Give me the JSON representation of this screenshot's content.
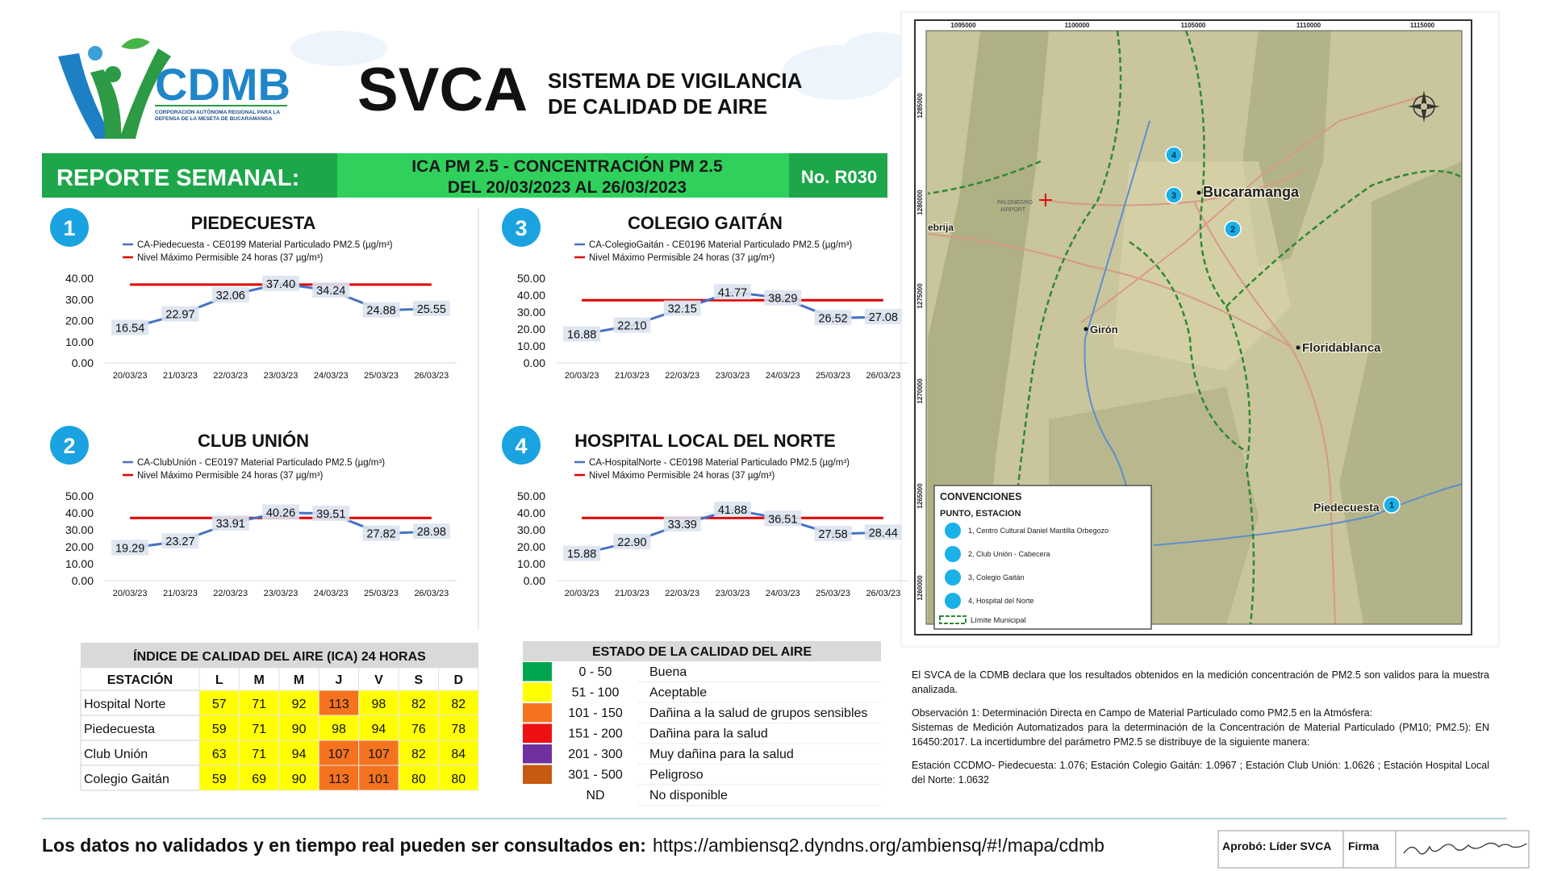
{
  "header": {
    "org": "CDMB",
    "org_subtitle_1": "CORPORACIÓN AUTÓNOMA REGIONAL PARA LA",
    "org_subtitle_2": "DEFENSA DE LA MESETA DE BUCARAMANGA",
    "brand": "SVCA",
    "title_line1": "SISTEMA DE VIGILANCIA",
    "title_line2": "DE CALIDAD DE AIRE"
  },
  "banner": {
    "label": "REPORTE SEMANAL:",
    "line1": "ICA PM 2.5 - CONCENTRACIÓN PM 2.5",
    "line2": "DEL 20/03/2023 AL 26/03/2023",
    "number": "No. R030"
  },
  "chart_data": [
    {
      "type": "line",
      "number": "1",
      "title": "PIEDECUESTA",
      "categories": [
        "20/03/23",
        "21/03/23",
        "22/03/23",
        "23/03/23",
        "24/03/23",
        "25/03/23",
        "26/03/23"
      ],
      "series": [
        {
          "name": "CA-Piedecuesta - CE0199 Material Particulado PM2.5 (µg/m³)",
          "color": "#4472c4",
          "values": [
            16.54,
            22.97,
            32.06,
            37.4,
            34.24,
            24.88,
            25.55
          ],
          "value_labels": [
            "16.54",
            "22.97",
            "32.06",
            "37.40",
            "34.24",
            "24.88",
            "25.55"
          ]
        },
        {
          "name": "Nivel Máximo Permisible 24 horas (37 µg/m³)",
          "color": "#e00000",
          "values": [
            37,
            37,
            37,
            37,
            37,
            37,
            37
          ]
        }
      ],
      "ylim": [
        0,
        40
      ],
      "yticks": [
        {
          "value": 0,
          "label": "0.00"
        },
        {
          "value": 10,
          "label": "10.00"
        },
        {
          "value": 20,
          "label": "20.00"
        },
        {
          "value": 30,
          "label": "30.00"
        },
        {
          "value": 40,
          "label": "40.00"
        }
      ]
    },
    {
      "type": "line",
      "number": "2",
      "title": "CLUB UNIÓN",
      "categories": [
        "20/03/23",
        "21/03/23",
        "22/03/23",
        "23/03/23",
        "24/03/23",
        "25/03/23",
        "26/03/23"
      ],
      "series": [
        {
          "name": "CA-ClubUnión - CE0197 Material Particulado PM2.5 (µg/m³)",
          "color": "#4472c4",
          "values": [
            19.29,
            23.27,
            33.91,
            40.26,
            39.51,
            27.82,
            28.98
          ],
          "value_labels": [
            "19.29",
            "23.27",
            "33.91",
            "40.26",
            "39.51",
            "27.82",
            "28.98"
          ]
        },
        {
          "name": "Nivel Máximo Permisible 24 horas (37 µg/m³)",
          "color": "#e00000",
          "values": [
            37,
            37,
            37,
            37,
            37,
            37,
            37
          ]
        }
      ],
      "ylim": [
        0,
        50
      ],
      "yticks": [
        {
          "value": 0,
          "label": "0.00"
        },
        {
          "value": 10,
          "label": "10.00"
        },
        {
          "value": 20,
          "label": "20.00"
        },
        {
          "value": 30,
          "label": "30.00"
        },
        {
          "value": 40,
          "label": "40.00"
        },
        {
          "value": 50,
          "label": "50.00"
        }
      ]
    },
    {
      "type": "line",
      "number": "3",
      "title": "COLEGIO GAITÁN",
      "categories": [
        "20/03/23",
        "21/03/23",
        "22/03/23",
        "23/03/23",
        "24/03/23",
        "25/03/23",
        "26/03/23"
      ],
      "series": [
        {
          "name": "CA-ColegioGaitán - CE0196 Material Particulado PM2.5 (µg/m³)",
          "color": "#4472c4",
          "values": [
            16.88,
            22.1,
            32.15,
            41.77,
            38.29,
            26.52,
            27.08
          ],
          "value_labels": [
            "16.88",
            "22.10",
            "32.15",
            "41.77",
            "38.29",
            "26.52",
            "27.08"
          ]
        },
        {
          "name": "Nivel Máximo Permisible 24 horas (37 µg/m³)",
          "color": "#e00000",
          "values": [
            37,
            37,
            37,
            37,
            37,
            37,
            37
          ]
        }
      ],
      "ylim": [
        0,
        50
      ],
      "yticks": [
        {
          "value": 0,
          "label": "0.00"
        },
        {
          "value": 10,
          "label": "10.00"
        },
        {
          "value": 20,
          "label": "20.00"
        },
        {
          "value": 30,
          "label": "30.00"
        },
        {
          "value": 40,
          "label": "40.00"
        },
        {
          "value": 50,
          "label": "50.00"
        }
      ]
    },
    {
      "type": "line",
      "number": "4",
      "title": "HOSPITAL LOCAL DEL NORTE",
      "categories": [
        "20/03/23",
        "21/03/23",
        "22/03/23",
        "23/03/23",
        "24/03/23",
        "25/03/23",
        "26/03/23"
      ],
      "series": [
        {
          "name": "CA-HospitalNorte - CE0198 Material Particulado PM2.5 (µg/m³)",
          "color": "#4472c4",
          "values": [
            15.88,
            22.9,
            33.39,
            41.88,
            36.51,
            27.58,
            28.44
          ],
          "value_labels": [
            "15.88",
            "22.90",
            "33.39",
            "41.88",
            "36.51",
            "27.58",
            "28.44"
          ]
        },
        {
          "name": "Nivel Máximo Permisible 24 horas (37 µg/m³)",
          "color": "#e00000",
          "values": [
            37,
            37,
            37,
            37,
            37,
            37,
            37
          ]
        }
      ],
      "ylim": [
        0,
        50
      ],
      "yticks": [
        {
          "value": 0,
          "label": "0.00"
        },
        {
          "value": 10,
          "label": "10.00"
        },
        {
          "value": 20,
          "label": "20.00"
        },
        {
          "value": 30,
          "label": "30.00"
        },
        {
          "value": 40,
          "label": "40.00"
        },
        {
          "value": 50,
          "label": "50.00"
        }
      ]
    }
  ],
  "ica_table": {
    "title": "ÍNDICE DE CALIDAD DEL AIRE (ICA) 24 HORAS",
    "header": [
      "ESTACIÓN",
      "L",
      "M",
      "M",
      "J",
      "V",
      "S",
      "D"
    ],
    "rows": [
      {
        "station": "Hospital Norte",
        "values": [
          57,
          71,
          92,
          113,
          98,
          82,
          82
        ],
        "colors": [
          "#ffff00",
          "#ffff00",
          "#ffff00",
          "#f5731f",
          "#ffff00",
          "#ffff00",
          "#ffff00"
        ]
      },
      {
        "station": "Piedecuesta",
        "values": [
          59,
          71,
          90,
          98,
          94,
          76,
          78
        ],
        "colors": [
          "#ffff00",
          "#ffff00",
          "#ffff00",
          "#ffff00",
          "#ffff00",
          "#ffff00",
          "#ffff00"
        ]
      },
      {
        "station": "Club Unión",
        "values": [
          63,
          71,
          94,
          107,
          107,
          82,
          84
        ],
        "colors": [
          "#ffff00",
          "#ffff00",
          "#ffff00",
          "#f5731f",
          "#f5731f",
          "#ffff00",
          "#ffff00"
        ]
      },
      {
        "station": "Colegio Gaitán",
        "values": [
          59,
          69,
          90,
          113,
          101,
          80,
          80
        ],
        "colors": [
          "#ffff00",
          "#ffff00",
          "#ffff00",
          "#f5731f",
          "#f5731f",
          "#ffff00",
          "#ffff00"
        ]
      }
    ]
  },
  "air_quality": {
    "title": "ESTADO DE LA CALIDAD DEL AIRE",
    "rows": [
      {
        "color": "#00a550",
        "range": "0 - 50",
        "label": "Buena"
      },
      {
        "color": "#ffff00",
        "range": "51 - 100",
        "label": "Aceptable"
      },
      {
        "color": "#f5731f",
        "range": "101 - 150",
        "label": "Dañina a la salud de grupos sensibles"
      },
      {
        "color": "#ee1111",
        "range": "151 - 200",
        "label": "Dañina para la salud"
      },
      {
        "color": "#7030a0",
        "range": "201 - 300",
        "label": "Muy dañina para la salud"
      },
      {
        "color": "#c55a11",
        "range": "301 - 500",
        "label": "Peligroso"
      },
      {
        "range": "ND",
        "label": "No disponible"
      }
    ]
  },
  "map": {
    "x_ticks": [
      "1095000",
      "1100000",
      "1105000",
      "1110000",
      "1115000"
    ],
    "y_ticks": [
      "1285000",
      "1280000",
      "1275000",
      "1270000",
      "1265000",
      "1260000"
    ],
    "places": [
      "Bucaramanga",
      "Girón",
      "Floridablanca",
      "Piedecuesta",
      "ebrija"
    ],
    "airport": [
      "PALONEGRO",
      "AIRPORT"
    ],
    "stations": [
      "4",
      "3",
      "2",
      "1"
    ],
    "legend": {
      "title": "CONVENCIONES",
      "subtitle": "PUNTO, ESTACION",
      "items": [
        "1, Centro Cultural Daniel Mantilla Orbegozo",
        "2, Club Unión - Cabecera",
        "3, Colegio Gaitán",
        "4, Hospital del Norte"
      ],
      "boundary": "Límite Municipal"
    }
  },
  "notes": {
    "p1": "El SVCA  de la CDMB declara que los resultados obtenidos en la medición concentración de PM2.5 son validos para la muestra  analizada.",
    "p2": "Observación 1: Determinación Directa en Campo de Material Particulado como PM2.5 en la Atmósfera:",
    "p3": "Sistemas de Medición Automatizados para la  determinación de la Concentración de Material Particulado (PM10; PM2.5): EN 16450:2017. La incertidumbre del parámetro PM2.5 se distribuye de la siguiente manera:",
    "p4": "Estación CCDMO- Piedecuesta: 1.076; Estación Colegio Gaitán: 1.0967 ; Estación Club Unión: 1.0626 ; Estación Hospital Local del Norte: 1.0632"
  },
  "footer": {
    "lead": "Los datos no validados y en tiempo real pueden ser consultados en:",
    "url": "https://ambiensq2.dyndns.org/ambiensq/#!/mapa/cdmb",
    "approved": "Aprobó: Líder SVCA",
    "signature_label": "Firma"
  }
}
